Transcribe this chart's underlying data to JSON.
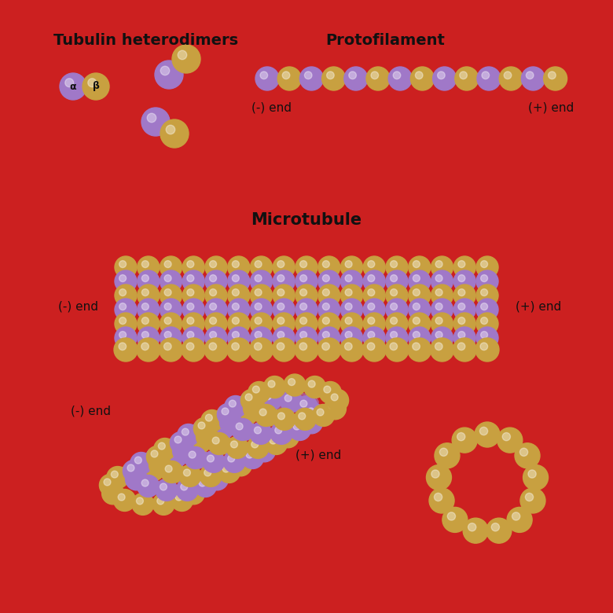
{
  "bg_color": "#e5e5e8",
  "border_color": "#cc2020",
  "inner_bg": "#e8e8ec",
  "purple": "#a078c8",
  "gold": "#c8a040",
  "text_color": "#111111",
  "title_fontsize": 14,
  "label_fontsize": 11,
  "titles": {
    "heterodimers": "Tubulin heterodimers",
    "protofilament": "Protofilament",
    "microtubule": "Microtubule"
  },
  "minus_end": "(-) end",
  "plus_end": "(+) end"
}
